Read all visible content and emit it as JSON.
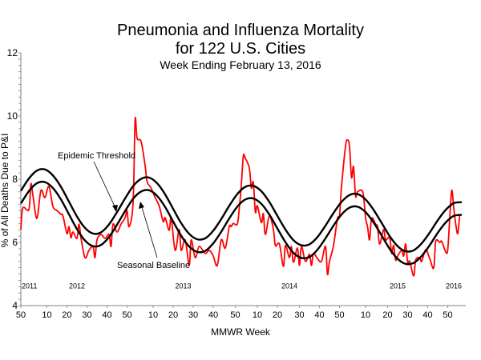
{
  "chart_data": {
    "type": "line",
    "title": "Pneumonia and Influenza Mortality",
    "title_line2": "for 122 U.S. Cities",
    "subtitle": "Week Ending  February 13, 2016",
    "xlabel": "MMWR Week",
    "ylabel": "% of All Deaths Due to P&I",
    "ylim": [
      4,
      12
    ],
    "xlim": [
      0,
      222
    ],
    "grid": false,
    "y_ticks": [
      4,
      6,
      8,
      10,
      12
    ],
    "y_minor_step": 0.2,
    "x_ticks": [
      {
        "t": 0,
        "label": "50"
      },
      {
        "t": 13,
        "label": "10"
      },
      {
        "t": 23,
        "label": "20"
      },
      {
        "t": 33,
        "label": "30"
      },
      {
        "t": 43,
        "label": "40"
      },
      {
        "t": 53,
        "label": "50"
      },
      {
        "t": 66,
        "label": "10"
      },
      {
        "t": 76,
        "label": "20"
      },
      {
        "t": 86,
        "label": "30"
      },
      {
        "t": 96,
        "label": "40"
      },
      {
        "t": 107,
        "label": "50"
      },
      {
        "t": 118,
        "label": "10"
      },
      {
        "t": 128,
        "label": "20"
      },
      {
        "t": 139,
        "label": "30"
      },
      {
        "t": 149,
        "label": "40"
      },
      {
        "t": 159,
        "label": "50"
      },
      {
        "t": 172,
        "label": "10"
      },
      {
        "t": 183,
        "label": "20"
      },
      {
        "t": 193,
        "label": "30"
      },
      {
        "t": 203,
        "label": "40"
      },
      {
        "t": 213,
        "label": "50"
      }
    ],
    "year_labels": [
      {
        "t": 0,
        "label": "2011"
      },
      {
        "t": 28,
        "label": "2012"
      },
      {
        "t": 81,
        "label": "2013"
      },
      {
        "t": 134,
        "label": "2014"
      },
      {
        "t": 188,
        "label": "2015"
      },
      {
        "t": 216,
        "label": "2016"
      }
    ],
    "year_label_value": 4.55,
    "annotations": {
      "threshold_label": "Epidemic Threshold",
      "baseline_label": "Seasonal Baseline"
    },
    "colors": {
      "observed": "#ff0000",
      "baseline": "#000000",
      "threshold": "#000000"
    },
    "series": [
      {
        "name": "P&I Mortality",
        "color": "#ff0000",
        "points": [
          [
            0,
            6.41
          ],
          [
            1,
            7.09
          ],
          [
            4,
            7.04
          ],
          [
            5,
            7.85
          ],
          [
            6,
            7.5
          ],
          [
            8,
            6.76
          ],
          [
            10,
            7.64
          ],
          [
            12,
            7.42
          ],
          [
            14,
            7.77
          ],
          [
            16,
            7.14
          ],
          [
            18,
            7.01
          ],
          [
            20,
            6.89
          ],
          [
            21,
            6.84
          ],
          [
            23,
            6.28
          ],
          [
            24,
            6.5
          ],
          [
            25,
            6.15
          ],
          [
            26,
            6.33
          ],
          [
            28,
            6.13
          ],
          [
            29,
            6.58
          ],
          [
            30,
            6.15
          ],
          [
            32,
            5.52
          ],
          [
            34,
            5.75
          ],
          [
            36,
            5.87
          ],
          [
            37,
            5.52
          ],
          [
            38,
            6.08
          ],
          [
            40,
            6.25
          ],
          [
            42,
            6.13
          ],
          [
            44,
            6.25
          ],
          [
            45,
            5.87
          ],
          [
            46,
            6.58
          ],
          [
            48,
            6.33
          ],
          [
            50,
            6.58
          ],
          [
            52,
            6.78
          ],
          [
            53,
            7.0
          ],
          [
            54,
            6.5
          ],
          [
            56,
            7.26
          ],
          [
            57,
            9.87
          ],
          [
            58,
            9.29
          ],
          [
            60,
            9.19
          ],
          [
            62,
            8.43
          ],
          [
            63,
            7.92
          ],
          [
            65,
            7.72
          ],
          [
            67,
            7.42
          ],
          [
            69,
            7.16
          ],
          [
            71,
            6.66
          ],
          [
            72,
            6.78
          ],
          [
            74,
            6.38
          ],
          [
            75,
            6.78
          ],
          [
            77,
            5.75
          ],
          [
            79,
            6.41
          ],
          [
            80,
            5.75
          ],
          [
            82,
            6.08
          ],
          [
            84,
            5.27
          ],
          [
            85,
            6.08
          ],
          [
            87,
            5.52
          ],
          [
            89,
            5.87
          ],
          [
            92,
            5.65
          ],
          [
            94,
            5.75
          ],
          [
            96,
            5.57
          ],
          [
            98,
            5.27
          ],
          [
            100,
            6.08
          ],
          [
            102,
            5.82
          ],
          [
            104,
            6.5
          ],
          [
            105,
            6.5
          ],
          [
            106,
            6.6
          ],
          [
            108,
            6.58
          ],
          [
            109,
            7.09
          ],
          [
            110,
            7.8
          ],
          [
            111,
            8.73
          ],
          [
            112,
            8.66
          ],
          [
            114,
            8.35
          ],
          [
            115,
            7.72
          ],
          [
            116,
            7.9
          ],
          [
            117,
            6.96
          ],
          [
            118,
            7.16
          ],
          [
            120,
            6.63
          ],
          [
            121,
            6.91
          ],
          [
            122,
            6.25
          ],
          [
            124,
            6.84
          ],
          [
            126,
            6.41
          ],
          [
            127,
            5.9
          ],
          [
            129,
            5.95
          ],
          [
            131,
            5.24
          ],
          [
            132,
            5.9
          ],
          [
            134,
            5.52
          ],
          [
            135,
            5.87
          ],
          [
            136,
            5.37
          ],
          [
            138,
            5.82
          ],
          [
            139,
            5.27
          ],
          [
            140,
            5.87
          ],
          [
            142,
            5.4
          ],
          [
            144,
            5.62
          ],
          [
            145,
            5.27
          ],
          [
            146,
            5.65
          ],
          [
            148,
            5.49
          ],
          [
            150,
            5.4
          ],
          [
            152,
            5.87
          ],
          [
            153,
            4.99
          ],
          [
            154,
            5.4
          ],
          [
            156,
            5.9
          ],
          [
            158,
            6.76
          ],
          [
            159,
            6.84
          ],
          [
            160,
            7.77
          ],
          [
            162,
            9.04
          ],
          [
            163,
            9.24
          ],
          [
            164,
            9.04
          ],
          [
            165,
            8.05
          ],
          [
            166,
            8.4
          ],
          [
            167,
            7.47
          ],
          [
            168,
            7.6
          ],
          [
            170,
            7.65
          ],
          [
            171,
            7.47
          ],
          [
            172,
            6.78
          ],
          [
            173,
            6.5
          ],
          [
            174,
            6.08
          ],
          [
            175,
            6.76
          ],
          [
            177,
            6.58
          ],
          [
            178,
            6.5
          ],
          [
            179,
            5.95
          ],
          [
            181,
            6.41
          ],
          [
            182,
            6.08
          ],
          [
            184,
            6.15
          ],
          [
            185,
            5.65
          ],
          [
            186,
            5.9
          ],
          [
            187,
            5.44
          ],
          [
            188,
            5.57
          ],
          [
            190,
            5.75
          ],
          [
            191,
            5.57
          ],
          [
            192,
            5.95
          ],
          [
            193,
            5.37
          ],
          [
            194,
            5.4
          ],
          [
            196,
            4.94
          ],
          [
            197,
            5.44
          ],
          [
            199,
            5.52
          ],
          [
            200,
            5.4
          ],
          [
            202,
            5.77
          ],
          [
            204,
            5.49
          ],
          [
            206,
            5.19
          ],
          [
            207,
            6.03
          ],
          [
            209,
            6.0
          ],
          [
            210,
            6.03
          ],
          [
            212,
            5.7
          ],
          [
            213,
            5.77
          ],
          [
            214,
            6.76
          ],
          [
            215,
            7.65
          ],
          [
            216,
            7.09
          ],
          [
            217,
            6.58
          ],
          [
            218,
            6.28
          ],
          [
            219,
            6.89
          ]
        ]
      },
      {
        "name": "Seasonal Baseline",
        "color": "#000000",
        "t_step": 4,
        "values": [
          7.23,
          7.62,
          7.87,
          7.91,
          7.72,
          7.36,
          6.89,
          6.42,
          6.06,
          5.88,
          5.92,
          6.17,
          6.56,
          6.99,
          7.38,
          7.61,
          7.65,
          7.47,
          7.12,
          6.66,
          6.21,
          5.87,
          5.7,
          5.73,
          5.97,
          6.34,
          6.76,
          7.13,
          7.36,
          7.39,
          7.22,
          6.88,
          6.44,
          6.01,
          5.67,
          5.51,
          5.54,
          5.77,
          6.13,
          6.53,
          6.88,
          7.1,
          7.13,
          6.96,
          6.63,
          6.22,
          5.8,
          5.48,
          5.32,
          5.35,
          5.57,
          5.91,
          6.3,
          6.63,
          6.84,
          6.87
        ]
      },
      {
        "name": "Epidemic Threshold",
        "color": "#000000",
        "t_step": 4,
        "values": [
          7.63,
          8.02,
          8.27,
          8.31,
          8.12,
          7.76,
          7.29,
          6.82,
          6.46,
          6.28,
          6.32,
          6.57,
          6.96,
          7.39,
          7.78,
          8.01,
          8.05,
          7.87,
          7.52,
          7.06,
          6.61,
          6.27,
          6.1,
          6.13,
          6.37,
          6.74,
          7.16,
          7.53,
          7.76,
          7.79,
          7.62,
          7.28,
          6.84,
          6.41,
          6.07,
          5.91,
          5.94,
          6.17,
          6.53,
          6.93,
          7.28,
          7.5,
          7.53,
          7.36,
          7.03,
          6.62,
          6.2,
          5.88,
          5.72,
          5.75,
          5.97,
          6.31,
          6.7,
          7.03,
          7.24,
          7.27
        ]
      }
    ]
  }
}
